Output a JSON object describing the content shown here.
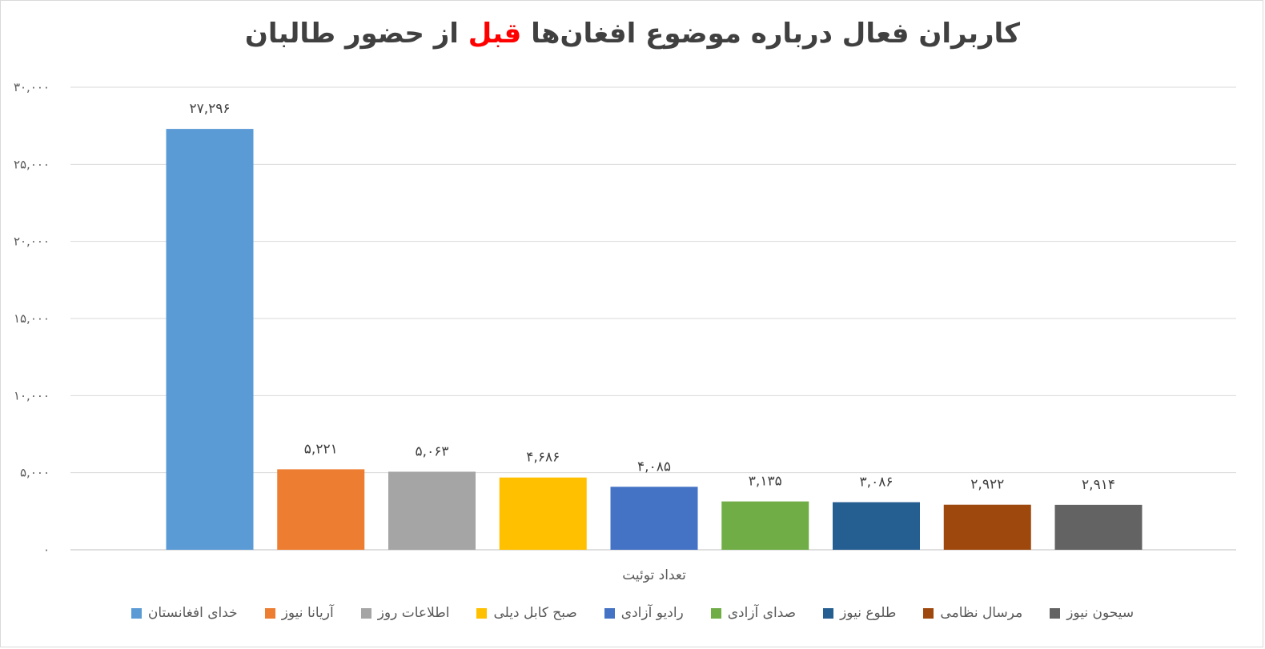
{
  "chart_data": {
    "type": "bar",
    "title_parts": [
      "کاربران فعال درباره موضوع افغان‌ها ",
      "قبل",
      " از حضور طالبان"
    ],
    "title_highlight_color": "#ff0000",
    "xlabel": "تعداد توئیت",
    "ylim": [
      0,
      30000
    ],
    "grid": true,
    "legend_position": "bottom",
    "y_ticks": [
      {
        "value": 0,
        "label": "۰"
      },
      {
        "value": 5000,
        "label": "۵,۰۰۰"
      },
      {
        "value": 10000,
        "label": "۱۰,۰۰۰"
      },
      {
        "value": 15000,
        "label": "۱۵,۰۰۰"
      },
      {
        "value": 20000,
        "label": "۲۰,۰۰۰"
      },
      {
        "value": 25000,
        "label": "۲۵,۰۰۰"
      },
      {
        "value": 30000,
        "label": "۳۰,۰۰۰"
      }
    ],
    "series": [
      {
        "name": "خدای افغانستان",
        "value": 27296,
        "label": "۲۷,۲۹۶",
        "color": "#5b9bd5"
      },
      {
        "name": "آریانا نیوز",
        "value": 5221,
        "label": "۵,۲۲۱",
        "color": "#ed7d31"
      },
      {
        "name": "اطلاعات روز",
        "value": 5063,
        "label": "۵,۰۶۳",
        "color": "#a5a5a5"
      },
      {
        "name": "صبح کابل دیلی",
        "value": 4686,
        "label": "۴,۶۸۶",
        "color": "#ffc000"
      },
      {
        "name": "رادیو آزادی",
        "value": 4085,
        "label": "۴,۰۸۵",
        "color": "#4472c4"
      },
      {
        "name": "صدای آزادی",
        "value": 3135,
        "label": "۳,۱۳۵",
        "color": "#70ad47"
      },
      {
        "name": "طلوع نیوز",
        "value": 3086,
        "label": "۳,۰۸۶",
        "color": "#255e91"
      },
      {
        "name": "مرسال نظامی",
        "value": 2922,
        "label": "۲,۹۲۲",
        "color": "#9e480e"
      },
      {
        "name": "سیحون نیوز",
        "value": 2914,
        "label": "۲,۹۱۴",
        "color": "#636363"
      }
    ]
  }
}
